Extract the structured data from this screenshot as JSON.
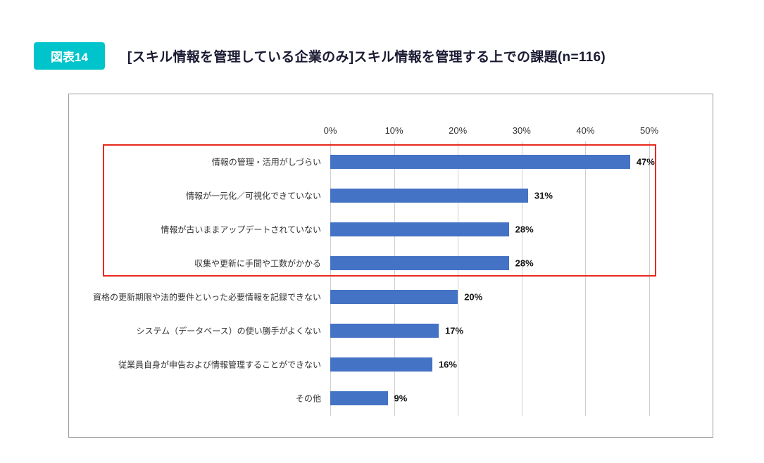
{
  "header": {
    "badge": "図表14",
    "title": "[スキル情報を管理している企業のみ]スキル情報を管理する上での課題(n=116)"
  },
  "chart_data": {
    "type": "bar",
    "orientation": "horizontal",
    "title": "[スキル情報を管理している企業のみ]スキル情報を管理する上での課題",
    "n_label": "n=116",
    "categories": [
      "情報の管理・活用がしづらい",
      "情報が一元化／可視化できていない",
      "情報が古いままアップデートされていない",
      "収集や更新に手間や工数がかかる",
      "資格の更新期限や法的要件といった必要情報を記録できない",
      "システム（データベース）の使い勝手がよくない",
      "従業員自身が申告および情報管理することができない",
      "その他"
    ],
    "values": [
      47,
      31,
      28,
      28,
      20,
      17,
      16,
      9
    ],
    "value_suffix": "%",
    "xlim": [
      0,
      50
    ],
    "x_ticks": [
      "0%",
      "10%",
      "20%",
      "30%",
      "40%",
      "50%"
    ],
    "grid": true,
    "legend": false,
    "highlighted_rows": [
      0,
      1,
      2,
      3
    ]
  },
  "colors": {
    "badge_bg": "#00c4cc",
    "bar": "#4472c4",
    "highlight_border": "#e8281e",
    "title_text": "#1a1a33"
  }
}
